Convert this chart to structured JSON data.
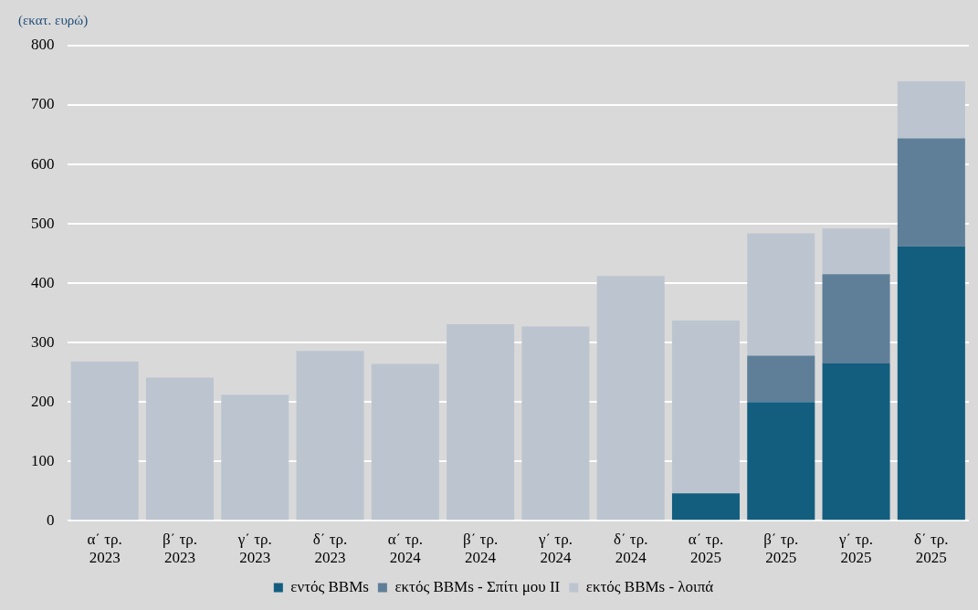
{
  "chart_data": {
    "type": "bar",
    "ylabel": "(εκατ. ευρώ)",
    "stacked": true,
    "legend": "bottom",
    "grid": "y",
    "categories": [
      "α΄ τρ. 2023",
      "β΄ τρ. 2023",
      "γ΄ τρ. 2023",
      "δ΄ τρ. 2023",
      "α΄ τρ. 2024",
      "β΄ τρ. 2024",
      "γ΄ τρ. 2024",
      "δ΄ τρ. 2024",
      "α΄ τρ. 2025",
      "β΄ τρ. 2025",
      "γ΄ τρ. 2025",
      "δ΄ τρ. 2025"
    ],
    "ylim": [
      0,
      800
    ],
    "yticks": [
      0,
      100,
      200,
      300,
      400,
      500,
      600,
      700,
      800
    ],
    "series": [
      {
        "name": "εντός BBMs",
        "color": "#135e7f",
        "values": [
          null,
          null,
          null,
          null,
          null,
          null,
          null,
          null,
          46,
          200,
          265,
          462
        ]
      },
      {
        "name": "εκτός BBMs - Σπίτι μου ΙΙ",
        "color": "#5f7f99",
        "values": [
          null,
          null,
          null,
          null,
          null,
          null,
          null,
          null,
          null,
          78,
          150,
          182
        ]
      },
      {
        "name": "εκτός BBMs - λοιπά",
        "color": "#bcc5cf",
        "values": [
          268,
          241,
          212,
          286,
          264,
          331,
          327,
          412,
          291,
          206,
          77,
          96
        ]
      }
    ]
  }
}
